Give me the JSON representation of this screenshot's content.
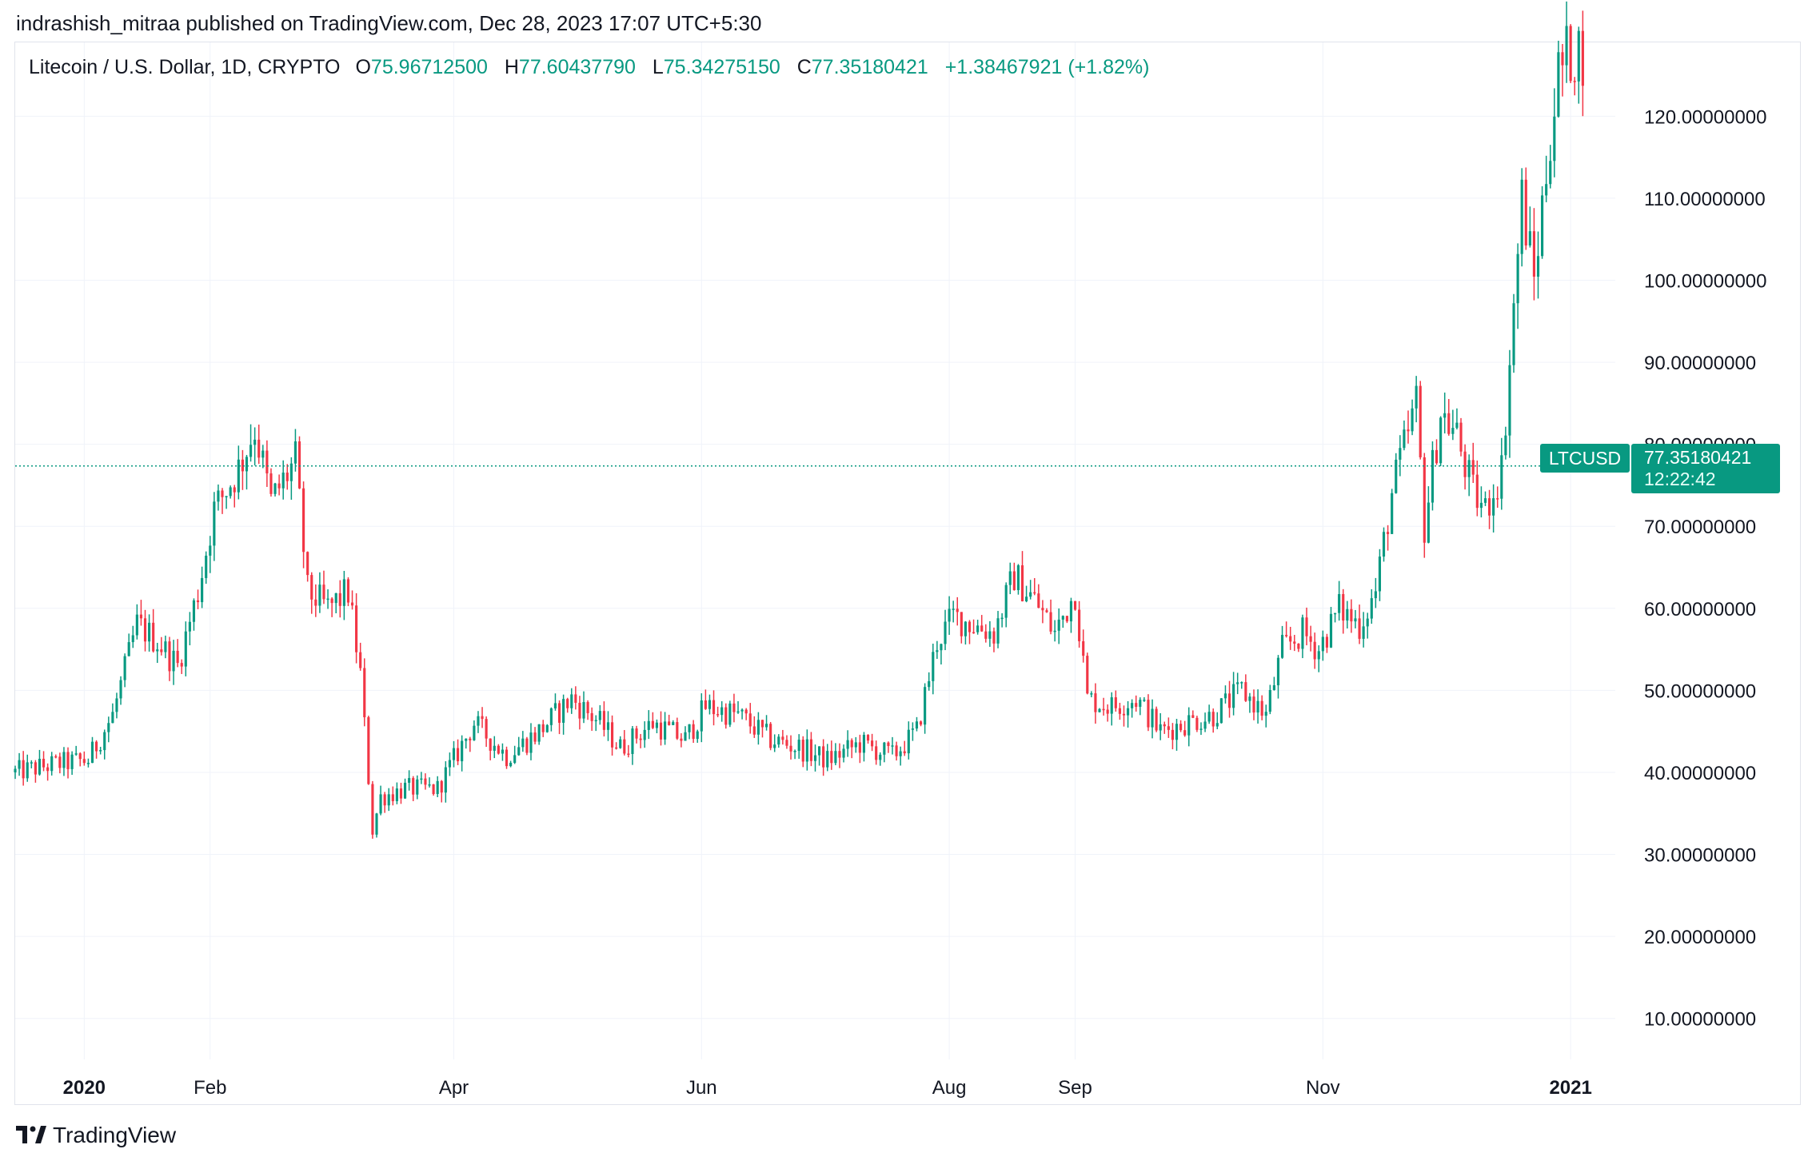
{
  "publish_line": "indrashish_mitraa published on TradingView.com, Dec 28, 2023 17:07 UTC+5:30",
  "legend": {
    "symbol": "Litecoin / U.S. Dollar, 1D, CRYPTO",
    "open_label": "O",
    "open": "75.96712500",
    "high_label": "H",
    "high": "77.60437790",
    "low_label": "L",
    "low": "75.34275150",
    "close_label": "C",
    "close": "77.35180421",
    "change": "+1.38467921 (+1.82%)"
  },
  "price_tag": {
    "symbol": "LTCUSD",
    "price": "77.35180421",
    "countdown": "12:22:42"
  },
  "footer": {
    "brand": "TradingView",
    "logo_icon": "tradingview-logo-icon"
  },
  "colors": {
    "up": "#089981",
    "down": "#f23645",
    "grid": "#f0f3fa",
    "axis_text": "#131722"
  },
  "chart_data": {
    "type": "candlestick",
    "symbol": "LTCUSD",
    "interval": "1D",
    "last_price": 77.3518,
    "y_range": [
      5,
      129
    ],
    "y_ticks": [
      {
        "value": 120,
        "label": "120.00000000"
      },
      {
        "value": 110,
        "label": "110.00000000"
      },
      {
        "value": 100,
        "label": "100.00000000"
      },
      {
        "value": 90,
        "label": "90.00000000"
      },
      {
        "value": 80,
        "label": "80.00000000"
      },
      {
        "value": 70,
        "label": "70.00000000"
      },
      {
        "value": 60,
        "label": "60.00000000"
      },
      {
        "value": 50,
        "label": "50.00000000"
      },
      {
        "value": 40,
        "label": "40.00000000"
      },
      {
        "value": 30,
        "label": "30.00000000"
      },
      {
        "value": 20,
        "label": "20.00000000"
      },
      {
        "value": 10,
        "label": "10.00000000"
      }
    ],
    "x_range": [
      "2019-12-15",
      "2021-01-12"
    ],
    "x_ticks": [
      {
        "date": "2020-01-01",
        "label": "2020",
        "bold": true
      },
      {
        "date": "2020-02-01",
        "label": "Feb",
        "bold": false
      },
      {
        "date": "2020-04-01",
        "label": "Apr",
        "bold": false
      },
      {
        "date": "2020-06-01",
        "label": "Jun",
        "bold": false
      },
      {
        "date": "2020-08-01",
        "label": "Aug",
        "bold": false
      },
      {
        "date": "2020-09-01",
        "label": "Sep",
        "bold": false
      },
      {
        "date": "2020-11-01",
        "label": "Nov",
        "bold": false
      },
      {
        "date": "2021-01-01",
        "label": "2021",
        "bold": true
      }
    ],
    "first_date": "2019-12-15",
    "close_anchors": [
      [
        "2019-12-15",
        40
      ],
      [
        "2019-12-25",
        41
      ],
      [
        "2020-01-02",
        41.5
      ],
      [
        "2020-01-08",
        47
      ],
      [
        "2020-01-14",
        58
      ],
      [
        "2020-01-19",
        56
      ],
      [
        "2020-01-24",
        53
      ],
      [
        "2020-01-29",
        62
      ],
      [
        "2020-02-02",
        72
      ],
      [
        "2020-02-08",
        77
      ],
      [
        "2020-02-12",
        82
      ],
      [
        "2020-02-16",
        73
      ],
      [
        "2020-02-22",
        78
      ],
      [
        "2020-02-25",
        62
      ],
      [
        "2020-03-01",
        60
      ],
      [
        "2020-03-06",
        62
      ],
      [
        "2020-03-09",
        52
      ],
      [
        "2020-03-12",
        33
      ],
      [
        "2020-03-14",
        37
      ],
      [
        "2020-03-20",
        38
      ],
      [
        "2020-03-28",
        38
      ],
      [
        "2020-04-06",
        46
      ],
      [
        "2020-04-14",
        42
      ],
      [
        "2020-04-22",
        45
      ],
      [
        "2020-04-30",
        49
      ],
      [
        "2020-05-07",
        46
      ],
      [
        "2020-05-12",
        43
      ],
      [
        "2020-05-20",
        46
      ],
      [
        "2020-05-28",
        44
      ],
      [
        "2020-06-02",
        48
      ],
      [
        "2020-06-10",
        47
      ],
      [
        "2020-06-18",
        44
      ],
      [
        "2020-06-25",
        43
      ],
      [
        "2020-07-02",
        41.5
      ],
      [
        "2020-07-10",
        43.5
      ],
      [
        "2020-07-18",
        42
      ],
      [
        "2020-07-24",
        45
      ],
      [
        "2020-07-29",
        56
      ],
      [
        "2020-08-02",
        59
      ],
      [
        "2020-08-07",
        58
      ],
      [
        "2020-08-12",
        57
      ],
      [
        "2020-08-17",
        64
      ],
      [
        "2020-08-22",
        61
      ],
      [
        "2020-08-27",
        57
      ],
      [
        "2020-09-01",
        62
      ],
      [
        "2020-09-04",
        49
      ],
      [
        "2020-09-10",
        48
      ],
      [
        "2020-09-16",
        49
      ],
      [
        "2020-09-22",
        45
      ],
      [
        "2020-09-28",
        46
      ],
      [
        "2020-10-05",
        47
      ],
      [
        "2020-10-12",
        50
      ],
      [
        "2020-10-18",
        47
      ],
      [
        "2020-10-22",
        55
      ],
      [
        "2020-10-27",
        57
      ],
      [
        "2020-10-31",
        55
      ],
      [
        "2020-11-05",
        60
      ],
      [
        "2020-11-10",
        58
      ],
      [
        "2020-11-14",
        62
      ],
      [
        "2020-11-18",
        74
      ],
      [
        "2020-11-24",
        85
      ],
      [
        "2020-11-26",
        70
      ],
      [
        "2020-11-30",
        84
      ],
      [
        "2020-12-04",
        81
      ],
      [
        "2020-12-08",
        74
      ],
      [
        "2020-12-11",
        72
      ],
      [
        "2020-12-15",
        77
      ],
      [
        "2020-12-17",
        90
      ],
      [
        "2020-12-20",
        110
      ],
      [
        "2020-12-23",
        100
      ],
      [
        "2020-12-27",
        118
      ],
      [
        "2020-12-29",
        125
      ],
      [
        "2021-01-01",
        128
      ]
    ]
  }
}
